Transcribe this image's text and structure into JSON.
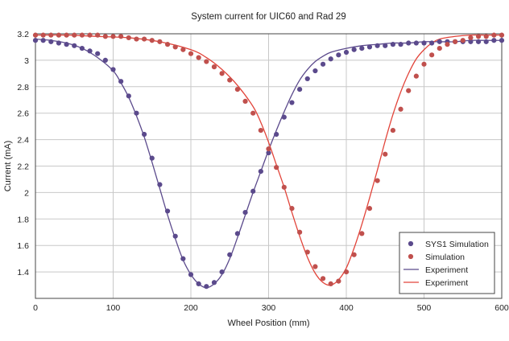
{
  "chart_data": {
    "type": "scatter",
    "title": "System current for UIC60 and Rad 29",
    "xlabel": "Wheel Position (mm)",
    "ylabel": "Current (mA)",
    "xlim": [
      0,
      600
    ],
    "ylim": [
      1.2,
      3.2
    ],
    "xticks": [
      0,
      100,
      200,
      300,
      400,
      500,
      600
    ],
    "yticks": [
      1.4,
      1.6,
      1.8,
      2,
      2.2,
      2.4,
      2.6,
      2.8,
      3,
      3.2
    ],
    "ytick_labels": [
      "1.4",
      "1.6",
      "1.8",
      "2",
      "2.2",
      "2.4",
      "2.6",
      "2.8",
      "3",
      "3.2"
    ],
    "grid": true,
    "legend_position": "bottom-right",
    "series": [
      {
        "name": "SYS1 Simulation",
        "kind": "markers",
        "color": "#5b4a8c",
        "x": [
          0,
          10,
          20,
          30,
          40,
          50,
          60,
          70,
          80,
          90,
          100,
          110,
          120,
          130,
          140,
          150,
          160,
          170,
          180,
          190,
          200,
          210,
          220,
          230,
          240,
          250,
          260,
          270,
          280,
          290,
          300,
          310,
          320,
          330,
          340,
          350,
          360,
          370,
          380,
          390,
          400,
          410,
          420,
          430,
          440,
          450,
          460,
          470,
          480,
          490,
          500,
          510,
          520,
          530,
          540,
          550,
          560,
          570,
          580,
          590,
          600
        ],
        "y": [
          3.15,
          3.15,
          3.14,
          3.13,
          3.12,
          3.11,
          3.09,
          3.07,
          3.05,
          3.0,
          2.93,
          2.84,
          2.73,
          2.6,
          2.44,
          2.26,
          2.06,
          1.86,
          1.67,
          1.5,
          1.38,
          1.31,
          1.29,
          1.32,
          1.4,
          1.53,
          1.69,
          1.85,
          2.01,
          2.16,
          2.3,
          2.44,
          2.57,
          2.68,
          2.78,
          2.86,
          2.92,
          2.97,
          3.01,
          3.04,
          3.06,
          3.08,
          3.09,
          3.1,
          3.11,
          3.11,
          3.12,
          3.12,
          3.13,
          3.13,
          3.13,
          3.13,
          3.14,
          3.14,
          3.14,
          3.14,
          3.14,
          3.14,
          3.14,
          3.15,
          3.15
        ]
      },
      {
        "name": "Simulation",
        "kind": "markers",
        "color": "#c0504d",
        "x": [
          0,
          10,
          20,
          30,
          40,
          50,
          60,
          70,
          80,
          90,
          100,
          110,
          120,
          130,
          140,
          150,
          160,
          170,
          180,
          190,
          200,
          210,
          220,
          230,
          240,
          250,
          260,
          270,
          280,
          290,
          300,
          310,
          320,
          330,
          340,
          350,
          360,
          370,
          380,
          390,
          400,
          410,
          420,
          430,
          440,
          450,
          460,
          470,
          480,
          490,
          500,
          510,
          520,
          530,
          540,
          550,
          560,
          570,
          580,
          590,
          600
        ],
        "y": [
          3.19,
          3.19,
          3.19,
          3.19,
          3.19,
          3.19,
          3.19,
          3.19,
          3.19,
          3.18,
          3.18,
          3.18,
          3.17,
          3.16,
          3.16,
          3.15,
          3.14,
          3.12,
          3.1,
          3.08,
          3.05,
          3.02,
          2.99,
          2.95,
          2.9,
          2.85,
          2.78,
          2.69,
          2.6,
          2.47,
          2.33,
          2.19,
          2.04,
          1.88,
          1.7,
          1.55,
          1.44,
          1.35,
          1.31,
          1.33,
          1.4,
          1.53,
          1.69,
          1.88,
          2.09,
          2.29,
          2.47,
          2.63,
          2.77,
          2.88,
          2.97,
          3.04,
          3.09,
          3.12,
          3.14,
          3.15,
          3.17,
          3.18,
          3.18,
          3.19,
          3.19
        ]
      },
      {
        "name": "Experiment",
        "kind": "line",
        "color": "#5b4a8c",
        "x": [
          0,
          20,
          40,
          60,
          80,
          100,
          110,
          120,
          130,
          140,
          150,
          160,
          170,
          180,
          190,
          200,
          210,
          220,
          230,
          240,
          250,
          260,
          270,
          280,
          290,
          300,
          310,
          320,
          330,
          340,
          350,
          360,
          370,
          380,
          400,
          420,
          440,
          460,
          480,
          500,
          520,
          540,
          560,
          580,
          600
        ],
        "y": [
          3.16,
          3.15,
          3.13,
          3.09,
          3.02,
          2.92,
          2.83,
          2.72,
          2.58,
          2.42,
          2.23,
          2.03,
          1.83,
          1.65,
          1.49,
          1.38,
          1.31,
          1.28,
          1.31,
          1.38,
          1.5,
          1.66,
          1.83,
          2.0,
          2.16,
          2.32,
          2.47,
          2.61,
          2.74,
          2.85,
          2.93,
          2.99,
          3.03,
          3.06,
          3.09,
          3.11,
          3.12,
          3.13,
          3.13,
          3.14,
          3.14,
          3.14,
          3.15,
          3.15,
          3.15
        ]
      },
      {
        "name": "Experiment",
        "kind": "line",
        "color": "#e2443a",
        "x": [
          0,
          40,
          80,
          120,
          160,
          200,
          220,
          240,
          260,
          280,
          290,
          300,
          310,
          320,
          330,
          340,
          350,
          360,
          370,
          380,
          390,
          400,
          410,
          420,
          430,
          440,
          450,
          460,
          470,
          480,
          490,
          500,
          510,
          520,
          540,
          560,
          580,
          600
        ],
        "y": [
          3.19,
          3.19,
          3.18,
          3.17,
          3.14,
          3.08,
          3.02,
          2.93,
          2.81,
          2.65,
          2.53,
          2.38,
          2.21,
          2.04,
          1.85,
          1.67,
          1.51,
          1.39,
          1.32,
          1.3,
          1.34,
          1.43,
          1.58,
          1.76,
          1.96,
          2.17,
          2.39,
          2.59,
          2.76,
          2.9,
          3.01,
          3.08,
          3.13,
          3.16,
          3.18,
          3.19,
          3.19,
          3.19
        ]
      }
    ]
  }
}
